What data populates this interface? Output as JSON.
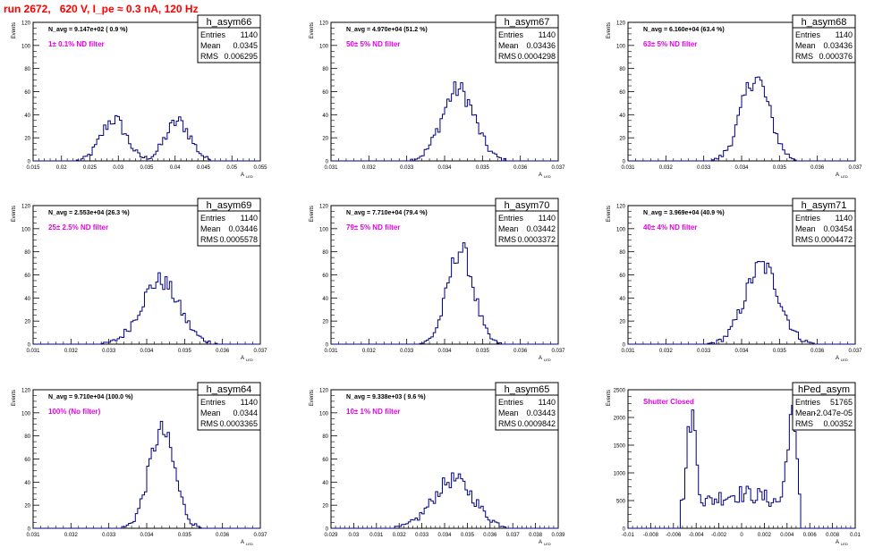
{
  "run_title": "run 2672,   620 V, I_pe ≈ 0.3 nA, 120 Hz",
  "stat_labels": {
    "entries": "Entries",
    "mean": "Mean",
    "rms": "RMS"
  },
  "colors": {
    "histogram_line": "#000080",
    "annotation": "#e600e6",
    "title": "#ff0000",
    "axis": "#000000"
  },
  "chart_data": [
    {
      "type": "histogram",
      "name": "h_asym66",
      "ylabel": "Events",
      "xlabel": "A_LED",
      "xlim": [
        0.015,
        0.055
      ],
      "ylim": [
        0,
        120
      ],
      "xticks": [
        "0.015",
        "0.02",
        "0.025",
        "0.03",
        "0.035",
        "0.04",
        "0.045",
        "0.05",
        "0.055"
      ],
      "yticks": [
        "0",
        "20",
        "40",
        "60",
        "80",
        "100",
        "120"
      ],
      "navg": "N_avg = 9.147e+02 ( 0.9 %)",
      "filter_label": "1± 0.1% ND filter",
      "stats": {
        "entries": "1140",
        "mean": "0.0345",
        "rms": "0.006295"
      },
      "peaks": [
        {
          "x": 0.0292,
          "sigma": 0.0022,
          "amp": 36
        },
        {
          "x": 0.0405,
          "sigma": 0.0022,
          "amp": 34
        }
      ]
    },
    {
      "type": "histogram",
      "name": "h_asym67",
      "ylabel": "Events",
      "xlabel": "A_LED",
      "xlim": [
        0.031,
        0.037
      ],
      "ylim": [
        0,
        120
      ],
      "xticks": [
        "0.031",
        "0.032",
        "0.033",
        "0.034",
        "0.035",
        "0.036",
        "0.037"
      ],
      "yticks": [
        "0",
        "20",
        "40",
        "60",
        "80",
        "100",
        "120"
      ],
      "navg": "N_avg = 4.970e+04 (51.2 %)",
      "filter_label": "50± 5% ND filter",
      "stats": {
        "entries": "1140",
        "mean": "0.03436",
        "rms": "0.0004298"
      },
      "peaks": [
        {
          "x": 0.03436,
          "sigma": 0.00043,
          "amp": 62
        }
      ]
    },
    {
      "type": "histogram",
      "name": "h_asym68",
      "ylabel": "Events",
      "xlabel": "A_LED",
      "xlim": [
        0.031,
        0.037
      ],
      "ylim": [
        0,
        120
      ],
      "xticks": [
        "0.031",
        "0.032",
        "0.033",
        "0.034",
        "0.035",
        "0.036",
        "0.037"
      ],
      "yticks": [
        "0",
        "20",
        "40",
        "60",
        "80",
        "100",
        "120"
      ],
      "navg": "N_avg = 6.160e+04 (63.4 %)",
      "filter_label": "63± 5% ND filter",
      "stats": {
        "entries": "1140",
        "mean": "0.03436",
        "rms": "0.000376"
      },
      "peaks": [
        {
          "x": 0.03436,
          "sigma": 0.000376,
          "amp": 72
        }
      ]
    },
    {
      "type": "histogram",
      "name": "h_asym69",
      "ylabel": "Events",
      "xlabel": "A_LED",
      "xlim": [
        0.031,
        0.037
      ],
      "ylim": [
        0,
        120
      ],
      "xticks": [
        "0.031",
        "0.032",
        "0.033",
        "0.034",
        "0.035",
        "0.036",
        "0.037"
      ],
      "yticks": [
        "0",
        "20",
        "40",
        "60",
        "80",
        "100",
        "120"
      ],
      "navg": "N_avg = 2.553e+04 (26.3 %)",
      "filter_label": "25± 2.5% ND filter",
      "stats": {
        "entries": "1140",
        "mean": "0.03446",
        "rms": "0.0005578"
      },
      "peaks": [
        {
          "x": 0.03435,
          "sigma": 0.0005,
          "amp": 55
        }
      ]
    },
    {
      "type": "histogram",
      "name": "h_asym70",
      "ylabel": "Events",
      "xlabel": "A_LED",
      "xlim": [
        0.031,
        0.037
      ],
      "ylim": [
        0,
        120
      ],
      "xticks": [
        "0.031",
        "0.032",
        "0.033",
        "0.034",
        "0.035",
        "0.036",
        "0.037"
      ],
      "yticks": [
        "0",
        "20",
        "40",
        "60",
        "80",
        "100",
        "120"
      ],
      "navg": "N_avg = 7.710e+04 (79.4 %)",
      "filter_label": "79± 5% ND filter",
      "stats": {
        "entries": "1140",
        "mean": "0.03442",
        "rms": "0.0003372"
      },
      "peaks": [
        {
          "x": 0.03442,
          "sigma": 0.00034,
          "amp": 82
        }
      ]
    },
    {
      "type": "histogram",
      "name": "h_asym71",
      "ylabel": "Events",
      "xlabel": "A_LED",
      "xlim": [
        0.031,
        0.037
      ],
      "ylim": [
        0,
        120
      ],
      "xticks": [
        "0.031",
        "0.032",
        "0.033",
        "0.034",
        "0.035",
        "0.036",
        "0.037"
      ],
      "yticks": [
        "0",
        "20",
        "40",
        "60",
        "80",
        "100",
        "120"
      ],
      "navg": "N_avg = 3.969e+04 (40.9 %)",
      "filter_label": "40± 4% ND filter",
      "stats": {
        "entries": "1140",
        "mean": "0.03454",
        "rms": "0.0004472"
      },
      "peaks": [
        {
          "x": 0.03454,
          "sigma": 0.00045,
          "amp": 68
        }
      ]
    },
    {
      "type": "histogram",
      "name": "h_asym64",
      "ylabel": "Events",
      "xlabel": "A_LED",
      "xlim": [
        0.031,
        0.037
      ],
      "ylim": [
        0,
        120
      ],
      "xticks": [
        "0.031",
        "0.032",
        "0.033",
        "0.034",
        "0.035",
        "0.036",
        "0.037"
      ],
      "yticks": [
        "0",
        "20",
        "40",
        "60",
        "80",
        "100",
        "120"
      ],
      "navg": "N_avg = 9.710e+04 (100.0 %)",
      "filter_label": "100% (No filter)",
      "stats": {
        "entries": "1140",
        "mean": "0.0344",
        "rms": "0.0003365"
      },
      "peaks": [
        {
          "x": 0.0344,
          "sigma": 0.00034,
          "amp": 84
        }
      ]
    },
    {
      "type": "histogram",
      "name": "h_asym65",
      "ylabel": "Events",
      "xlabel": "A_LED",
      "xlim": [
        0.029,
        0.039
      ],
      "ylim": [
        0,
        120
      ],
      "xticks": [
        "0.029",
        "0.03",
        "0.031",
        "0.032",
        "0.033",
        "0.034",
        "0.035",
        "0.036",
        "0.037",
        "0.038",
        "0.039"
      ],
      "yticks": [
        "0",
        "20",
        "40",
        "60",
        "80",
        "100",
        "120"
      ],
      "navg": "N_avg = 9.338e+03 ( 9.6 %)",
      "filter_label": "10± 1% ND filter",
      "stats": {
        "entries": "1140",
        "mean": "0.03443",
        "rms": "0.0009842"
      },
      "peaks": [
        {
          "x": 0.0344,
          "sigma": 0.0009,
          "amp": 42
        }
      ]
    },
    {
      "type": "histogram",
      "name": "hPed_asym",
      "ylabel": "Events",
      "xlabel": "A_LED",
      "xlim": [
        -0.01,
        0.01
      ],
      "ylim": [
        0,
        2500
      ],
      "xticks": [
        "-0.01",
        "-0.008",
        "-0.006",
        "-0.004",
        "-0.002",
        "0",
        "0.002",
        "0.004",
        "0.006",
        "0.008",
        "0.01"
      ],
      "yticks": [
        "0",
        "500",
        "1000",
        "1500",
        "2000",
        "2500"
      ],
      "navg": "",
      "filter_label": "Shutter Closed",
      "stats": {
        "entries": "51765",
        "mean": "-2.047e-05",
        "rms": "0.00352"
      },
      "peaks": [
        {
          "x": -0.0044,
          "sigma": 0.0004,
          "amp": 1700
        },
        {
          "x": 0.0044,
          "sigma": 0.0004,
          "amp": 1700
        },
        {
          "x": 0.0,
          "sigma": 0.0042,
          "amp": 620
        }
      ],
      "range_cut": [
        -0.0053,
        0.0053
      ]
    }
  ]
}
